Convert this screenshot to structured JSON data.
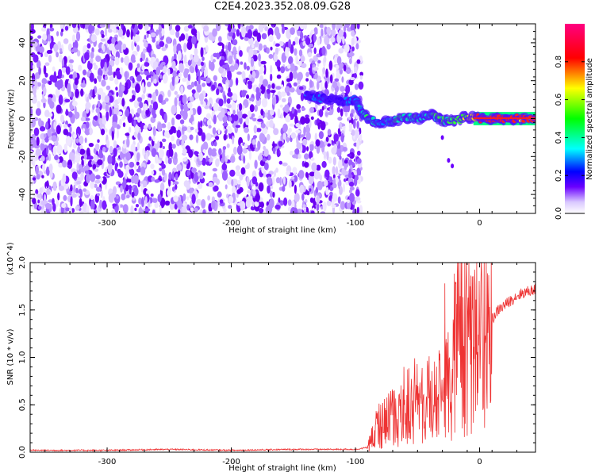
{
  "title": "C2E4.2023.352.08.09.G28",
  "chart_data": [
    {
      "type": "heatmap",
      "xlabel": "Height of straight line (km)",
      "ylabel": "Frequency (Hz)",
      "xlim": [
        -362,
        45
      ],
      "ylim": [
        -50,
        50
      ],
      "x_ticks": [
        -300,
        -200,
        -100,
        0
      ],
      "x_tick_labels": [
        "-300",
        "-200",
        "-100",
        "0"
      ],
      "y_ticks": [
        -40,
        -20,
        0,
        20,
        40
      ],
      "y_tick_labels": [
        "-40",
        "-20",
        "0",
        "20",
        "40"
      ],
      "colorbar": {
        "label": "Normalized spectral amplitude",
        "range": [
          0,
          1
        ],
        "ticks": [
          0.0,
          0.2,
          0.4,
          0.6,
          0.8
        ],
        "tick_labels": [
          "0.0",
          "0.2",
          "0.4",
          "0.6",
          "0.8"
        ],
        "colors": [
          "#ffffff",
          "#6a00ff",
          "#0000ff",
          "#00ffff",
          "#00ff00",
          "#ffff00",
          "#ff0000",
          "#ff0080"
        ]
      },
      "noise_region_x": [
        -362,
        -95
      ],
      "signal_track": [
        {
          "x": -140,
          "y": 12,
          "amp": 0.25
        },
        {
          "x": -130,
          "y": 11,
          "amp": 0.3
        },
        {
          "x": -120,
          "y": 10,
          "amp": 0.22
        },
        {
          "x": -110,
          "y": 9,
          "amp": 0.25
        },
        {
          "x": -100,
          "y": 10,
          "amp": 0.35
        },
        {
          "x": -95,
          "y": 3,
          "amp": 0.45
        },
        {
          "x": -90,
          "y": 0,
          "amp": 0.5
        },
        {
          "x": -80,
          "y": -2,
          "amp": 0.45
        },
        {
          "x": -70,
          "y": -1,
          "amp": 0.5
        },
        {
          "x": -60,
          "y": 1,
          "amp": 0.55
        },
        {
          "x": -50,
          "y": 0,
          "amp": 0.5
        },
        {
          "x": -40,
          "y": 2,
          "amp": 0.5
        },
        {
          "x": -30,
          "y": -1,
          "amp": 0.55
        },
        {
          "x": -20,
          "y": -1,
          "amp": 0.6
        },
        {
          "x": -10,
          "y": 1,
          "amp": 0.7
        },
        {
          "x": 0,
          "y": 0,
          "amp": 0.85
        },
        {
          "x": 10,
          "y": 0,
          "amp": 0.9
        },
        {
          "x": 20,
          "y": 0,
          "amp": 0.9
        },
        {
          "x": 30,
          "y": 0,
          "amp": 0.85
        },
        {
          "x": 45,
          "y": 0,
          "amp": 0.85
        }
      ]
    },
    {
      "type": "line",
      "xlabel": "Height of straight line (km)",
      "ylabel": "SNR (10 * v/v)",
      "y_multiplier_label": "(x10^4)",
      "xlim": [
        -362,
        45
      ],
      "ylim": [
        0,
        2.0
      ],
      "x_ticks": [
        -300,
        -200,
        -100,
        0
      ],
      "x_tick_labels": [
        "-300",
        "-200",
        "-100",
        "0"
      ],
      "y_ticks": [
        0,
        0.5,
        1.0,
        1.5,
        2.0
      ],
      "y_tick_labels": [
        "0.0",
        "0.5",
        "1.0",
        "1.5",
        "2.0"
      ],
      "series": [
        {
          "color": "#ee3333",
          "x": [
            -362,
            -300,
            -250,
            -200,
            -150,
            -100,
            -90,
            -85,
            -80,
            -75,
            -70,
            -65,
            -60,
            -55,
            -50,
            -45,
            -40,
            -35,
            -30,
            -25,
            -20,
            -15,
            -10,
            -5,
            0,
            5,
            10,
            15,
            20,
            25,
            30,
            35,
            40,
            45
          ],
          "y": [
            0.02,
            0.02,
            0.03,
            0.02,
            0.03,
            0.03,
            0.05,
            0.2,
            0.3,
            0.35,
            0.4,
            0.4,
            0.5,
            0.45,
            0.6,
            0.45,
            0.55,
            0.6,
            0.7,
            0.8,
            1.1,
            1.4,
            1.1,
            1.0,
            1.15,
            1.3,
            1.4,
            1.5,
            1.55,
            1.6,
            1.65,
            1.68,
            1.7,
            1.72
          ]
        }
      ]
    }
  ]
}
